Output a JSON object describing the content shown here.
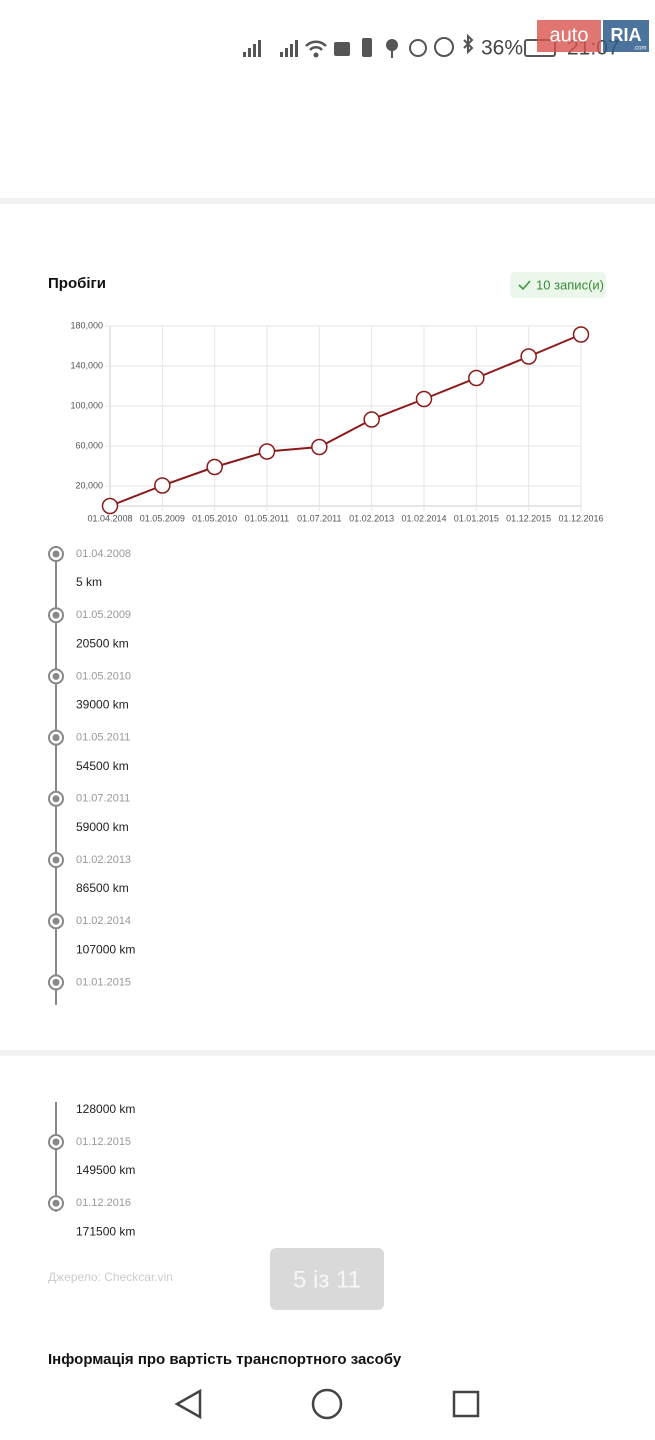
{
  "status_bar": {
    "battery": "36%",
    "time": "21:07"
  },
  "watermark": {
    "auto": "auto",
    "ria": "RIA",
    "domain": ".com"
  },
  "section": {
    "title": "Пробіги",
    "badge": "10 запис(и)"
  },
  "chart_data": {
    "type": "line",
    "categories": [
      "01.04.2008",
      "01.05.2009",
      "01.05.2010",
      "01.05.2011",
      "01.07.2011",
      "01.02.2013",
      "01.02.2014",
      "01.01.2015",
      "01.12.2015",
      "01.12.2016"
    ],
    "values": [
      5,
      20500,
      39000,
      54500,
      59000,
      86500,
      107000,
      128000,
      149500,
      171500
    ],
    "color": "#8b1a1a",
    "ylim": [
      0,
      180000
    ],
    "yticks": [
      {
        "value": 20000,
        "label": "20,000"
      },
      {
        "value": 60000,
        "label": "60,000"
      },
      {
        "value": 100000,
        "label": "100,000"
      },
      {
        "value": 140000,
        "label": "140,000"
      },
      {
        "value": 180000,
        "label": "180,000"
      }
    ],
    "grid": true
  },
  "timeline": [
    {
      "date": "01.04.2008",
      "mileage": "5 km"
    },
    {
      "date": "01.05.2009",
      "mileage": "20500 km"
    },
    {
      "date": "01.05.2010",
      "mileage": "39000 km"
    },
    {
      "date": "01.05.2011",
      "mileage": "54500 km"
    },
    {
      "date": "01.07.2011",
      "mileage": "59000 km"
    },
    {
      "date": "01.02.2013",
      "mileage": "86500 km"
    },
    {
      "date": "01.02.2014",
      "mileage": "107000 km"
    },
    {
      "date": "01.01.2015",
      "mileage": "128000 km"
    },
    {
      "date": "01.12.2015",
      "mileage": "149500 km"
    },
    {
      "date": "01.12.2016",
      "mileage": "171500 km"
    }
  ],
  "source": "Джерело: Checkcar.vin",
  "pager": "5 із 11",
  "next_title": "Інформація про вартість транспортного засобу"
}
